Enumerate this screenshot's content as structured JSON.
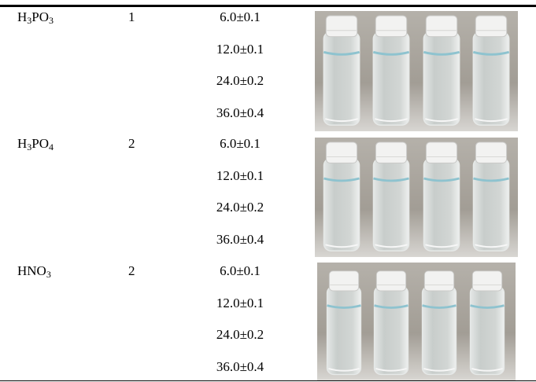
{
  "table": {
    "rows": [
      {
        "acid": [
          "H",
          "3",
          "PO",
          "3"
        ],
        "number": 1,
        "concentrations": [
          "6.0±0.1",
          "12.0±0.1",
          "24.0±0.2",
          "36.0±0.4"
        ]
      },
      {
        "acid": [
          "H",
          "3",
          "PO",
          "4"
        ],
        "number": 2,
        "concentrations": [
          "6.0±0.1",
          "12.0±0.1",
          "24.0±0.2",
          "36.0±0.4"
        ]
      },
      {
        "acid": [
          "HNO",
          "3"
        ],
        "number": 2,
        "concentrations": [
          "6.0±0.1",
          "12.0±0.1",
          "24.0±0.2",
          "36.0±0.4"
        ]
      }
    ]
  }
}
